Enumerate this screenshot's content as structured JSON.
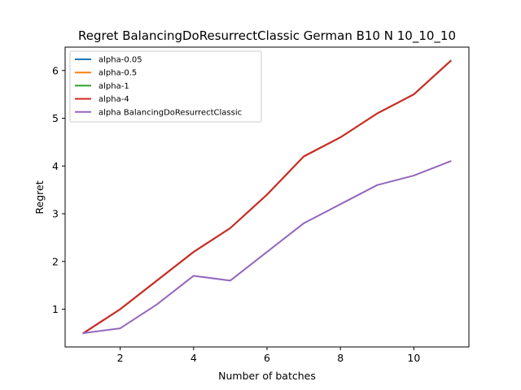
{
  "chart_data": {
    "type": "line",
    "title": "Regret BalancingDoResurrectClassic German B10 N 10_10_10",
    "xlabel": "Number of batches",
    "ylabel": "Regret",
    "xlim": [
      0.5,
      11.5
    ],
    "ylim": [
      0.21,
      6.49
    ],
    "xticks": [
      2,
      4,
      6,
      8,
      10
    ],
    "yticks": [
      1,
      2,
      3,
      4,
      5,
      6
    ],
    "grid": false,
    "legend_position": "top-left",
    "x": [
      1,
      2,
      3,
      4,
      5,
      6,
      7,
      8,
      9,
      10,
      11
    ],
    "series": [
      {
        "name": "alpha-0.05",
        "color": "#1f77b4",
        "values": [
          0.5,
          1.0,
          1.6,
          2.2,
          2.7,
          3.4,
          4.2,
          4.6,
          5.1,
          5.5,
          6.2
        ]
      },
      {
        "name": "alpha-0.5",
        "color": "#ff7f0e",
        "values": [
          0.5,
          1.0,
          1.6,
          2.2,
          2.7,
          3.4,
          4.2,
          4.6,
          5.1,
          5.5,
          6.2
        ]
      },
      {
        "name": "alpha-1",
        "color": "#2ca02c",
        "values": [
          0.5,
          1.0,
          1.6,
          2.2,
          2.7,
          3.4,
          4.2,
          4.6,
          5.1,
          5.5,
          6.2
        ]
      },
      {
        "name": "alpha-4",
        "color": "#d62728",
        "values": [
          0.5,
          1.0,
          1.6,
          2.2,
          2.7,
          3.4,
          4.2,
          4.6,
          5.1,
          5.5,
          6.2
        ]
      },
      {
        "name": "alpha BalancingDoResurrectClassic",
        "color": "#9467bd",
        "values": [
          0.5,
          0.6,
          1.1,
          1.7,
          1.6,
          2.2,
          2.8,
          3.2,
          3.6,
          3.8,
          4.1
        ]
      }
    ]
  }
}
